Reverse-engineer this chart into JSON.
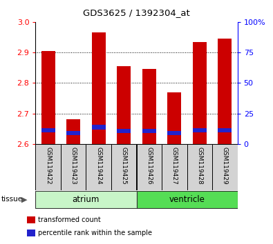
{
  "title": "GDS3625 / 1392304_at",
  "samples": [
    "GSM119422",
    "GSM119423",
    "GSM119424",
    "GSM119425",
    "GSM119426",
    "GSM119427",
    "GSM119428",
    "GSM119429"
  ],
  "groups": [
    {
      "name": "atrium",
      "indices": [
        0,
        1,
        2,
        3
      ],
      "color": "#c8f5c8"
    },
    {
      "name": "ventricle",
      "indices": [
        4,
        5,
        6,
        7
      ],
      "color": "#55dd55"
    }
  ],
  "ymin": 2.6,
  "ymax": 3.0,
  "red_tops": [
    2.905,
    2.68,
    2.965,
    2.855,
    2.845,
    2.77,
    2.935,
    2.945
  ],
  "blue_bottoms": [
    2.638,
    2.628,
    2.648,
    2.636,
    2.636,
    2.628,
    2.638,
    2.638
  ],
  "blue_tops": [
    2.652,
    2.642,
    2.662,
    2.65,
    2.65,
    2.642,
    2.652,
    2.652
  ],
  "bar_color": "#cc0000",
  "blue_color": "#2222cc",
  "yticks_left": [
    2.6,
    2.7,
    2.8,
    2.9,
    3.0
  ],
  "yticks_right_vals": [
    0,
    25,
    50,
    75,
    100
  ],
  "yticks_right_labels": [
    "0",
    "25",
    "50",
    "75",
    "100%"
  ],
  "bar_width": 0.55,
  "legend_items": [
    {
      "label": "transformed count",
      "color": "#cc0000"
    },
    {
      "label": "percentile rank within the sample",
      "color": "#2222cc"
    }
  ],
  "figsize": [
    3.95,
    3.54
  ],
  "dpi": 100
}
